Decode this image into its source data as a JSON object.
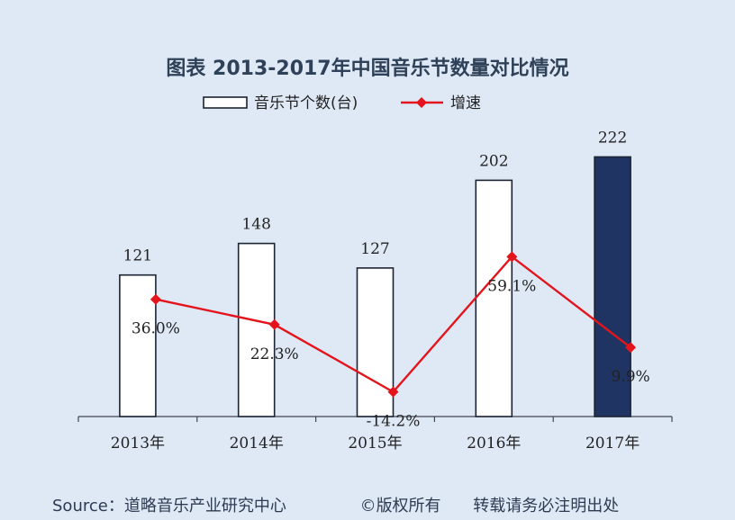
{
  "chart_title": "图表  2013-2017年中国音乐节数量对比情况",
  "chart_data": {
    "type": "bar",
    "title": "图表  2013-2017年中国音乐节数量对比情况",
    "xlabel": "",
    "ylabel": "",
    "categories": [
      "2013年",
      "2014年",
      "2015年",
      "2016年",
      "2017年"
    ],
    "series": [
      {
        "name": "音乐节个数(台)",
        "type": "bar",
        "values": [
          121,
          148,
          127,
          202,
          222
        ],
        "value_labels": [
          "121",
          "148",
          "127",
          "202",
          "222"
        ],
        "highlight_index": 4
      },
      {
        "name": "增速",
        "type": "line",
        "values": [
          36.0,
          22.3,
          -14.2,
          59.1,
          9.9
        ],
        "value_labels": [
          "36.0%",
          "22.3%",
          "-14.2%",
          "59.1%",
          "9.9%"
        ]
      }
    ],
    "legend_position": "top-center",
    "grid": false,
    "colors": {
      "bar_fill": "#ffffff",
      "bar_highlight_fill": "#1f3462",
      "bar_stroke": "#1c2433",
      "line": "#e3141c",
      "background": "#dfe9f6"
    }
  },
  "footer": {
    "source": "Source：道略音乐产业研究中心",
    "copyright": "©版权所有",
    "reprint": "转载请务必注明出处"
  }
}
